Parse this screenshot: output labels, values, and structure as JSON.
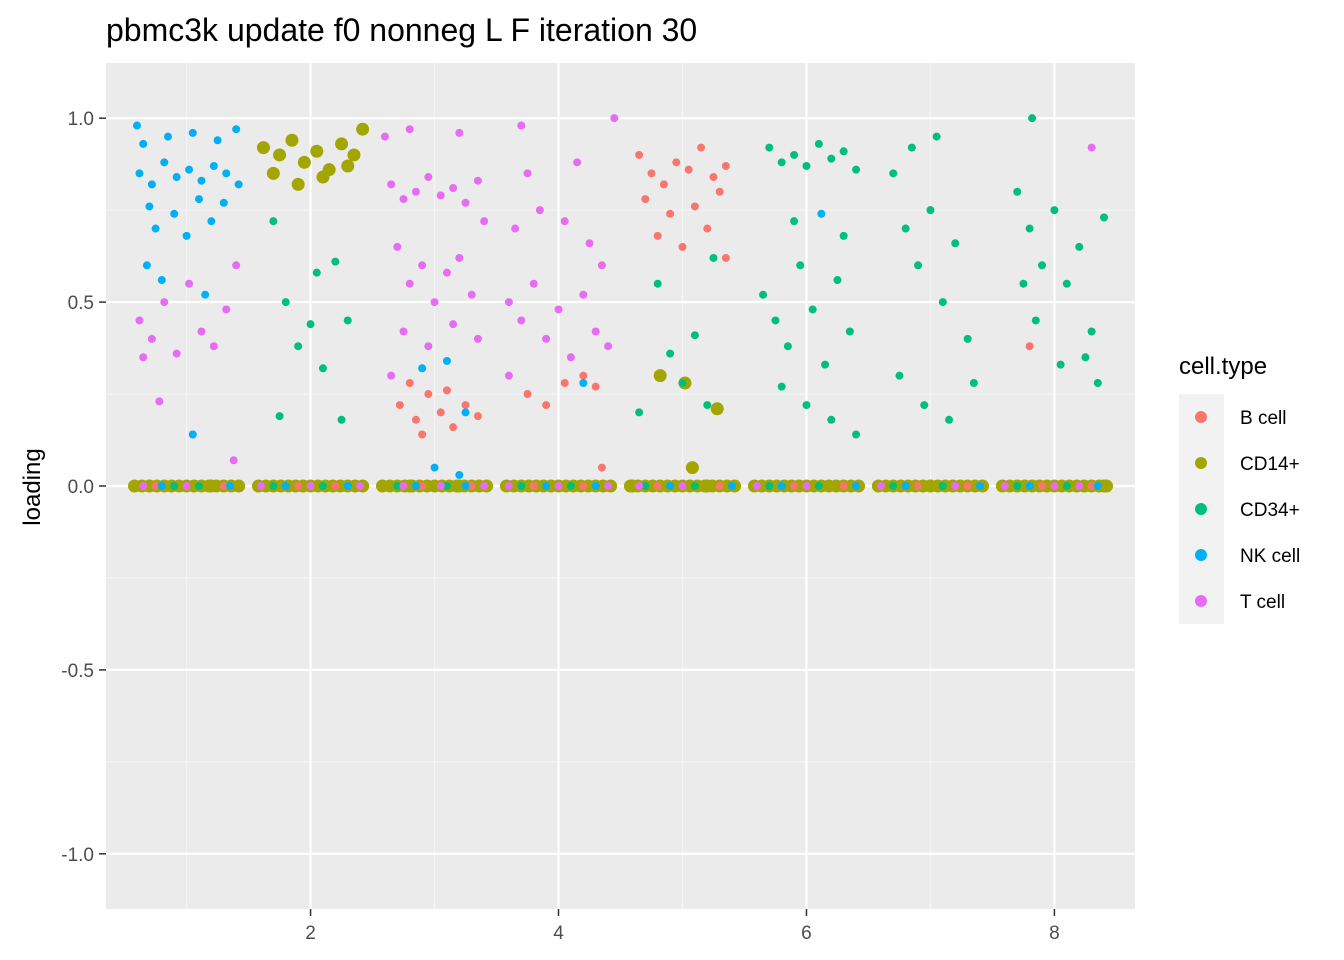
{
  "chart_data": {
    "type": "scatter",
    "title": "pbmc3k update f0 nonneg L F iteration 30",
    "xlabel": "",
    "ylabel": "loading",
    "xlim": [
      0.35,
      8.65
    ],
    "ylim": [
      -1.15,
      1.15
    ],
    "x_ticks": [
      2,
      4,
      6,
      8
    ],
    "x_tick_labels": [
      "2",
      "4",
      "6",
      "8"
    ],
    "y_ticks": [
      -1.0,
      -0.5,
      0.0,
      0.5,
      1.0
    ],
    "y_tick_labels": [
      "-1.0",
      "-0.5",
      "0.0",
      "0.5",
      "1.0"
    ],
    "grid": true,
    "legend": {
      "title": "cell.type",
      "placement": "right",
      "entries": [
        {
          "name": "B cell",
          "color": "#F8766D"
        },
        {
          "name": "CD14+",
          "color": "#A3A500"
        },
        {
          "name": "CD34+",
          "color": "#00BF7D"
        },
        {
          "name": "NK cell",
          "color": "#00B0F6"
        },
        {
          "name": "T cell",
          "color": "#E76BF3"
        }
      ]
    },
    "series": [
      {
        "name": "B cell",
        "color": "#F8766D",
        "points": [
          [
            2.72,
            0.22
          ],
          [
            2.85,
            0.18
          ],
          [
            2.95,
            0.25
          ],
          [
            3.05,
            0.2
          ],
          [
            3.15,
            0.16
          ],
          [
            3.25,
            0.22
          ],
          [
            3.35,
            0.19
          ],
          [
            2.8,
            0.28
          ],
          [
            3.1,
            0.26
          ],
          [
            2.9,
            0.14
          ],
          [
            3.75,
            0.25
          ],
          [
            3.9,
            0.22
          ],
          [
            4.05,
            0.28
          ],
          [
            4.2,
            0.3
          ],
          [
            4.3,
            0.27
          ],
          [
            4.65,
            0.9
          ],
          [
            4.75,
            0.85
          ],
          [
            4.85,
            0.82
          ],
          [
            4.95,
            0.88
          ],
          [
            5.05,
            0.86
          ],
          [
            5.15,
            0.92
          ],
          [
            5.25,
            0.84
          ],
          [
            5.35,
            0.87
          ],
          [
            4.7,
            0.78
          ],
          [
            4.9,
            0.74
          ],
          [
            5.1,
            0.76
          ],
          [
            5.3,
            0.8
          ],
          [
            4.8,
            0.68
          ],
          [
            5.2,
            0.7
          ],
          [
            5.0,
            0.65
          ],
          [
            5.35,
            0.62
          ],
          [
            7.8,
            0.38
          ],
          [
            4.35,
            0.05
          ]
        ]
      },
      {
        "name": "CD14+",
        "color": "#A3A500",
        "points": [
          [
            1.62,
            0.92
          ],
          [
            1.75,
            0.9
          ],
          [
            1.85,
            0.94
          ],
          [
            1.95,
            0.88
          ],
          [
            2.05,
            0.91
          ],
          [
            2.15,
            0.86
          ],
          [
            2.25,
            0.93
          ],
          [
            2.35,
            0.9
          ],
          [
            2.42,
            0.97
          ],
          [
            1.7,
            0.85
          ],
          [
            1.9,
            0.82
          ],
          [
            2.1,
            0.84
          ],
          [
            2.3,
            0.87
          ],
          [
            4.82,
            0.3
          ],
          [
            5.02,
            0.28
          ],
          [
            5.28,
            0.21
          ],
          [
            5.08,
            0.05
          ],
          [
            0.7,
            0.0
          ],
          [
            1.2,
            0.0
          ],
          [
            2.8,
            0.0
          ],
          [
            3.2,
            0.0
          ],
          [
            4.6,
            0.0
          ],
          [
            5.2,
            0.0
          ],
          [
            7.0,
            0.0
          ],
          [
            8.4,
            0.0
          ]
        ]
      },
      {
        "name": "CD34+",
        "color": "#00BF7D",
        "points": [
          [
            1.7,
            0.72
          ],
          [
            1.8,
            0.5
          ],
          [
            1.9,
            0.38
          ],
          [
            2.0,
            0.44
          ],
          [
            2.1,
            0.32
          ],
          [
            2.2,
            0.61
          ],
          [
            2.3,
            0.45
          ],
          [
            1.75,
            0.19
          ],
          [
            2.25,
            0.18
          ],
          [
            2.05,
            0.58
          ],
          [
            4.65,
            0.2
          ],
          [
            4.9,
            0.36
          ],
          [
            5.0,
            0.28
          ],
          [
            5.1,
            0.41
          ],
          [
            5.2,
            0.22
          ],
          [
            4.8,
            0.55
          ],
          [
            5.25,
            0.62
          ],
          [
            5.7,
            0.92
          ],
          [
            5.8,
            0.88
          ],
          [
            5.9,
            0.9
          ],
          [
            6.0,
            0.87
          ],
          [
            6.1,
            0.93
          ],
          [
            6.2,
            0.89
          ],
          [
            6.3,
            0.91
          ],
          [
            6.4,
            0.86
          ],
          [
            5.65,
            0.52
          ],
          [
            5.75,
            0.45
          ],
          [
            5.85,
            0.38
          ],
          [
            5.95,
            0.6
          ],
          [
            6.05,
            0.48
          ],
          [
            6.15,
            0.33
          ],
          [
            6.25,
            0.56
          ],
          [
            6.35,
            0.42
          ],
          [
            5.8,
            0.27
          ],
          [
            6.0,
            0.22
          ],
          [
            6.2,
            0.18
          ],
          [
            6.4,
            0.14
          ],
          [
            5.9,
            0.72
          ],
          [
            6.3,
            0.68
          ],
          [
            6.7,
            0.85
          ],
          [
            6.8,
            0.7
          ],
          [
            6.9,
            0.6
          ],
          [
            7.0,
            0.75
          ],
          [
            7.1,
            0.5
          ],
          [
            7.2,
            0.66
          ],
          [
            7.3,
            0.4
          ],
          [
            6.75,
            0.3
          ],
          [
            6.95,
            0.22
          ],
          [
            7.15,
            0.18
          ],
          [
            7.35,
            0.28
          ],
          [
            7.05,
            0.95
          ],
          [
            6.85,
            0.92
          ],
          [
            7.7,
            0.8
          ],
          [
            7.8,
            0.7
          ],
          [
            7.9,
            0.6
          ],
          [
            8.0,
            0.75
          ],
          [
            8.1,
            0.55
          ],
          [
            8.2,
            0.65
          ],
          [
            8.3,
            0.42
          ],
          [
            8.4,
            0.73
          ],
          [
            7.85,
            0.45
          ],
          [
            8.05,
            0.33
          ],
          [
            8.25,
            0.35
          ],
          [
            7.75,
            0.55
          ],
          [
            8.35,
            0.28
          ],
          [
            7.82,
            1.0
          ]
        ]
      },
      {
        "name": "NK cell",
        "color": "#00B0F6",
        "points": [
          [
            0.62,
            0.85
          ],
          [
            0.72,
            0.82
          ],
          [
            0.82,
            0.88
          ],
          [
            0.92,
            0.84
          ],
          [
            1.02,
            0.86
          ],
          [
            1.12,
            0.83
          ],
          [
            1.22,
            0.87
          ],
          [
            1.32,
            0.85
          ],
          [
            1.42,
            0.82
          ],
          [
            0.65,
            0.93
          ],
          [
            0.85,
            0.95
          ],
          [
            1.05,
            0.96
          ],
          [
            1.25,
            0.94
          ],
          [
            1.4,
            0.97
          ],
          [
            0.7,
            0.76
          ],
          [
            0.9,
            0.74
          ],
          [
            1.1,
            0.78
          ],
          [
            1.3,
            0.77
          ],
          [
            0.75,
            0.7
          ],
          [
            1.0,
            0.68
          ],
          [
            1.2,
            0.72
          ],
          [
            0.6,
            0.98
          ],
          [
            0.68,
            0.6
          ],
          [
            0.8,
            0.56
          ],
          [
            1.05,
            0.14
          ],
          [
            1.15,
            0.52
          ],
          [
            2.9,
            0.32
          ],
          [
            3.1,
            0.34
          ],
          [
            3.25,
            0.2
          ],
          [
            4.2,
            0.28
          ],
          [
            6.12,
            0.74
          ],
          [
            3.0,
            0.05
          ],
          [
            3.2,
            0.03
          ]
        ]
      },
      {
        "name": "T cell",
        "color": "#E76BF3",
        "points": [
          [
            0.62,
            0.45
          ],
          [
            0.72,
            0.4
          ],
          [
            0.82,
            0.5
          ],
          [
            0.92,
            0.36
          ],
          [
            1.02,
            0.55
          ],
          [
            1.12,
            0.42
          ],
          [
            1.22,
            0.38
          ],
          [
            1.32,
            0.48
          ],
          [
            0.78,
            0.23
          ],
          [
            1.38,
            0.07
          ],
          [
            0.65,
            0.35
          ],
          [
            1.4,
            0.6
          ],
          [
            2.65,
            0.82
          ],
          [
            2.75,
            0.78
          ],
          [
            2.85,
            0.8
          ],
          [
            2.95,
            0.84
          ],
          [
            3.05,
            0.79
          ],
          [
            3.15,
            0.81
          ],
          [
            3.25,
            0.77
          ],
          [
            3.35,
            0.83
          ],
          [
            2.7,
            0.65
          ],
          [
            2.8,
            0.55
          ],
          [
            2.9,
            0.6
          ],
          [
            3.0,
            0.5
          ],
          [
            3.1,
            0.58
          ],
          [
            3.2,
            0.62
          ],
          [
            3.3,
            0.52
          ],
          [
            2.75,
            0.42
          ],
          [
            2.95,
            0.38
          ],
          [
            3.15,
            0.44
          ],
          [
            3.35,
            0.4
          ],
          [
            2.6,
            0.95
          ],
          [
            2.8,
            0.97
          ],
          [
            3.2,
            0.96
          ],
          [
            2.65,
            0.3
          ],
          [
            3.4,
            0.72
          ],
          [
            3.6,
            0.5
          ],
          [
            3.7,
            0.45
          ],
          [
            3.8,
            0.55
          ],
          [
            3.9,
            0.4
          ],
          [
            4.0,
            0.48
          ],
          [
            4.1,
            0.35
          ],
          [
            4.2,
            0.52
          ],
          [
            4.3,
            0.42
          ],
          [
            4.4,
            0.38
          ],
          [
            3.65,
            0.7
          ],
          [
            3.85,
            0.75
          ],
          [
            4.05,
            0.72
          ],
          [
            4.25,
            0.66
          ],
          [
            3.75,
            0.85
          ],
          [
            4.15,
            0.88
          ],
          [
            3.6,
            0.3
          ],
          [
            4.35,
            0.6
          ],
          [
            4.45,
            1.0
          ],
          [
            3.7,
            0.98
          ],
          [
            8.3,
            0.92
          ]
        ]
      }
    ],
    "zero_band_points": [
      {
        "name": "B cell",
        "color": "#F8766D",
        "x": [
          0.75,
          1.3,
          1.9,
          2.2,
          2.9,
          3.3,
          3.8,
          4.2,
          4.8,
          5.3,
          5.9,
          6.3,
          6.9,
          7.3,
          7.9,
          8.3
        ]
      },
      {
        "name": "CD34+",
        "color": "#00BF7D",
        "x": [
          0.9,
          1.1,
          1.7,
          2.1,
          2.7,
          3.1,
          3.7,
          4.1,
          4.7,
          5.1,
          5.7,
          6.1,
          6.7,
          7.1,
          7.7,
          8.1
        ]
      },
      {
        "name": "NK cell",
        "color": "#00B0F6",
        "x": [
          0.8,
          1.35,
          1.8,
          2.3,
          2.85,
          3.25,
          3.9,
          4.3,
          4.9,
          5.4,
          5.8,
          6.4,
          6.8,
          7.4,
          7.8,
          8.35
        ]
      },
      {
        "name": "T cell",
        "color": "#E76BF3",
        "x": [
          0.65,
          1.0,
          1.6,
          2.0,
          2.4,
          2.75,
          3.05,
          3.4,
          3.6,
          4.0,
          4.4,
          4.65,
          5.0,
          5.6,
          6.0,
          6.6,
          7.2,
          7.6,
          8.0,
          8.2
        ]
      }
    ]
  }
}
